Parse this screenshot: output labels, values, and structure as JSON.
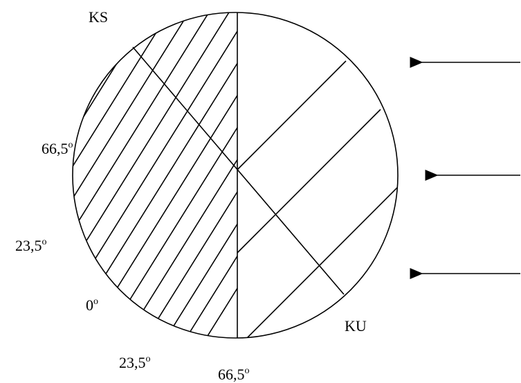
{
  "labels": {
    "ks": "KS",
    "ku": "KU",
    "left_top": {
      "text": "66,5",
      "sup": "o"
    },
    "left_mid": {
      "text": "23,5",
      "sup": "o"
    },
    "equator": {
      "text": "0",
      "sup": "o"
    },
    "bottom_left": {
      "text": "23,5",
      "sup": "o"
    },
    "bottom": {
      "text": "66,5",
      "sup": "o"
    }
  }
}
